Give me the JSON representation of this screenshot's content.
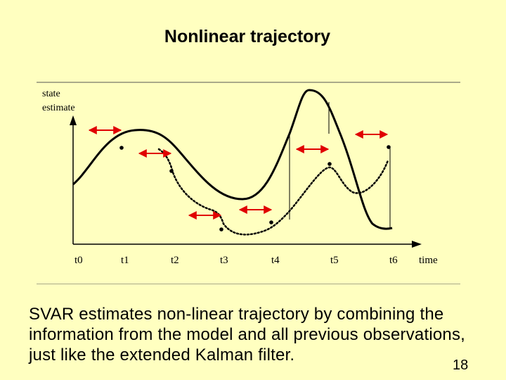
{
  "slide": {
    "title": "Nonlinear trajectory",
    "caption": "SVAR estimates non-linear trajectory by combining the information from the model and all previous observations, just like the extended Kalman filter.",
    "page_number": "18"
  },
  "diagram": {
    "y_axis_label_line1": "state",
    "y_axis_label_line2": "estimate",
    "x_axis_label": "time",
    "time_labels": [
      "t0",
      "t1",
      "t2",
      "t3",
      "t4",
      "t5",
      "t6"
    ],
    "legend": "none",
    "colors": {
      "background": "#FFFFC0",
      "trajectory": "#000000",
      "arrows": "#E00000"
    }
  }
}
